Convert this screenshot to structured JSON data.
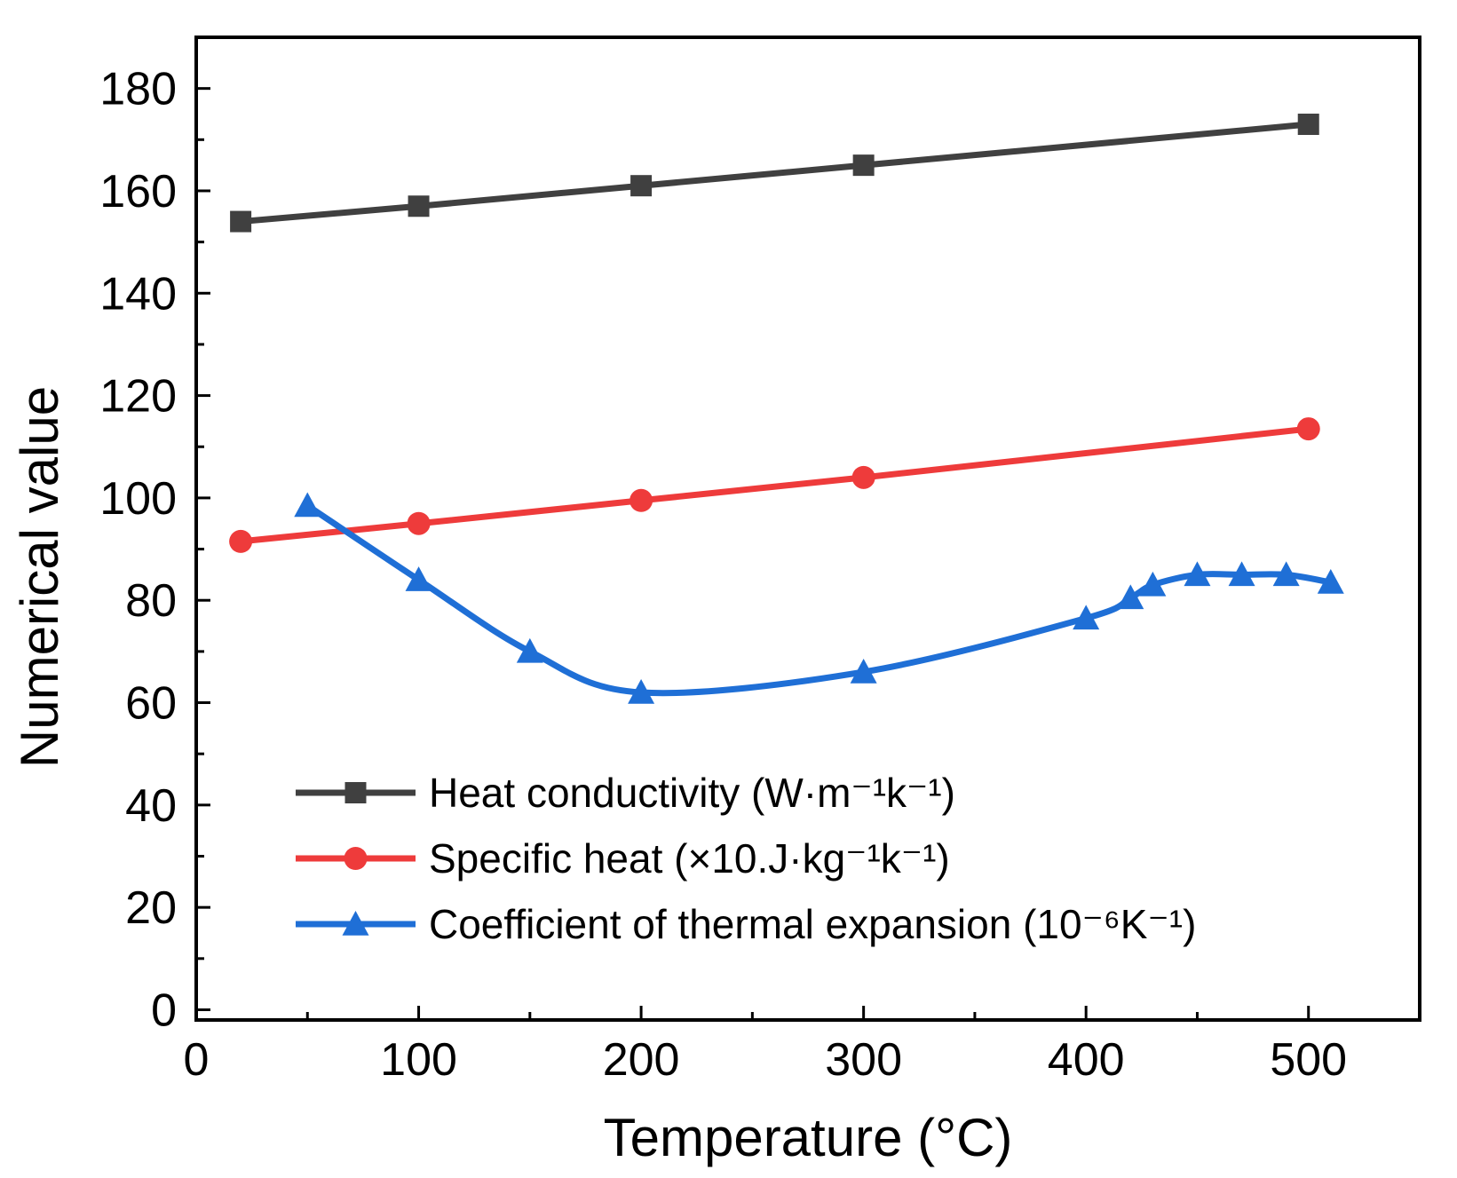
{
  "chart_data": {
    "type": "line",
    "xlabel": "Temperature (°C)",
    "ylabel": "Numerical value",
    "xlim": [
      0,
      550
    ],
    "ylim": [
      -2,
      190
    ],
    "x_ticks": [
      0,
      100,
      200,
      300,
      400,
      500
    ],
    "y_ticks": [
      0,
      20,
      40,
      60,
      80,
      100,
      120,
      140,
      160,
      180
    ],
    "legend_placement": "bottom-center",
    "grid": false,
    "series": [
      {
        "name": "Heat conductivity (W·m⁻¹k⁻¹)",
        "color": "#404040",
        "marker": "square",
        "smooth": false,
        "x": [
          20,
          100,
          200,
          300,
          500
        ],
        "y": [
          154,
          157,
          161,
          165,
          173
        ]
      },
      {
        "name": "Specific heat (×10.J·kg⁻¹k⁻¹)",
        "color": "#ee3b3b",
        "marker": "circle",
        "smooth": false,
        "x": [
          20,
          100,
          200,
          300,
          500
        ],
        "y": [
          91.5,
          95,
          99.5,
          104,
          113.5
        ]
      },
      {
        "name": "Coefficient of thermal expansion (10⁻⁶K⁻¹)",
        "color": "#1f6fd6",
        "marker": "triangle",
        "smooth": true,
        "x": [
          50,
          100,
          150,
          200,
          300,
          400,
          420,
          430,
          450,
          470,
          490,
          510
        ],
        "y": [
          98.5,
          84,
          70,
          62,
          66,
          76.5,
          80.5,
          83,
          85,
          85,
          85,
          83.5
        ]
      }
    ]
  }
}
